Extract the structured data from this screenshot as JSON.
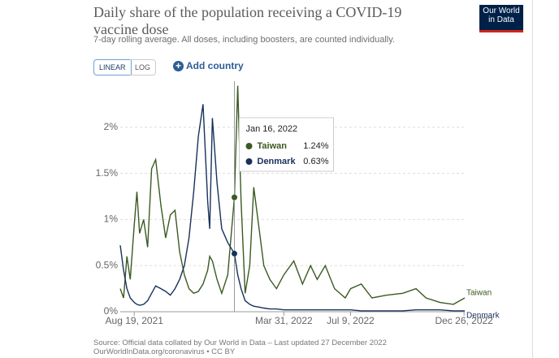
{
  "chart_data": {
    "type": "line",
    "title": "Daily share of the population receiving a COVID-19 vaccine dose",
    "subtitle": "7-day rolling average. All doses, including boosters, are counted individually.",
    "logo": [
      "Our World",
      "in Data"
    ],
    "controls": [
      "LINEAR",
      "LOG"
    ],
    "add_button": "Add country",
    "source": [
      "Source: Official data collated by Our World in Data – Last updated 27 December 2022",
      "OurWorldInData.org/coronavirus • CC BY"
    ],
    "x": [
      "2021-07-29",
      "2021-08-03",
      "2021-08-08",
      "2021-08-13",
      "2021-08-19",
      "2021-08-23",
      "2021-08-27",
      "2021-09-02",
      "2021-09-08",
      "2021-09-14",
      "2021-09-20",
      "2021-09-28",
      "2021-10-05",
      "2021-10-12",
      "2021-10-19",
      "2021-10-26",
      "2021-11-02",
      "2021-11-09",
      "2021-11-16",
      "2021-11-23",
      "2021-11-30",
      "2021-12-07",
      "2021-12-10",
      "2021-12-14",
      "2021-12-21",
      "2021-12-28",
      "2022-01-06",
      "2022-01-16",
      "2022-01-21",
      "2022-01-26",
      "2022-02-01",
      "2022-02-08",
      "2022-02-14",
      "2022-02-22",
      "2022-03-01",
      "2022-03-10",
      "2022-03-20",
      "2022-03-31",
      "2022-04-15",
      "2022-04-28",
      "2022-05-10",
      "2022-05-20",
      "2022-06-01",
      "2022-06-15",
      "2022-07-01",
      "2022-07-09",
      "2022-07-25",
      "2022-08-10",
      "2022-09-01",
      "2022-09-25",
      "2022-10-15",
      "2022-10-30",
      "2022-11-20",
      "2022-12-10",
      "2022-12-27"
    ],
    "series": [
      {
        "name": "Taiwan",
        "color": "#3b5a22",
        "values": [
          0.25,
          0.15,
          0.6,
          0.35,
          0.95,
          1.3,
          0.85,
          1.0,
          0.7,
          1.55,
          1.65,
          1.15,
          0.8,
          1.05,
          1.1,
          0.65,
          0.4,
          0.25,
          0.2,
          0.22,
          0.3,
          0.45,
          0.6,
          0.55,
          0.35,
          0.2,
          0.4,
          1.24,
          2.45,
          1.2,
          0.2,
          0.5,
          1.35,
          0.9,
          0.5,
          0.35,
          0.25,
          0.4,
          0.55,
          0.3,
          0.5,
          0.35,
          0.5,
          0.25,
          0.15,
          0.25,
          0.3,
          0.15,
          0.18,
          0.2,
          0.25,
          0.15,
          0.1,
          0.08,
          0.15
        ]
      },
      {
        "name": "Denmark",
        "color": "#18315a",
        "values": [
          0.72,
          0.45,
          0.25,
          0.15,
          0.1,
          0.08,
          0.07,
          0.08,
          0.12,
          0.2,
          0.28,
          0.25,
          0.22,
          0.18,
          0.25,
          0.35,
          0.5,
          0.8,
          1.3,
          1.9,
          2.25,
          1.2,
          0.9,
          2.1,
          1.4,
          0.9,
          0.75,
          0.63,
          0.4,
          0.25,
          0.12,
          0.08,
          0.06,
          0.05,
          0.04,
          0.03,
          0.03,
          0.02,
          0.02,
          0.02,
          0.02,
          0.02,
          0.02,
          0.02,
          0.02,
          0.02,
          0.01,
          0.01,
          0.01,
          0.01,
          0.02,
          0.02,
          0.02,
          0.01,
          0.01
        ]
      }
    ],
    "xlim": [
      "2021-07-29",
      "2022-12-27"
    ],
    "xticks": [
      {
        "value": "2021-08-19",
        "label": "Aug 19, 2021"
      },
      {
        "value": "2022-03-31",
        "label": "Mar 31, 2022"
      },
      {
        "value": "2022-07-09",
        "label": "Jul 9, 2022"
      },
      {
        "value": "2022-12-26",
        "label": "Dec 26, 2022"
      }
    ],
    "ylim": [
      0,
      2.5
    ],
    "yticks": [
      {
        "value": 0,
        "label": "0%"
      },
      {
        "value": 0.5,
        "label": "0.5%"
      },
      {
        "value": 1,
        "label": "1%"
      },
      {
        "value": 1.5,
        "label": "1.5%"
      },
      {
        "value": 2,
        "label": "2%"
      }
    ],
    "grid": true,
    "tooltip": {
      "index": 27,
      "date": "Jan 16, 2022",
      "labels": [
        "1.24%",
        "0.63%"
      ]
    }
  }
}
